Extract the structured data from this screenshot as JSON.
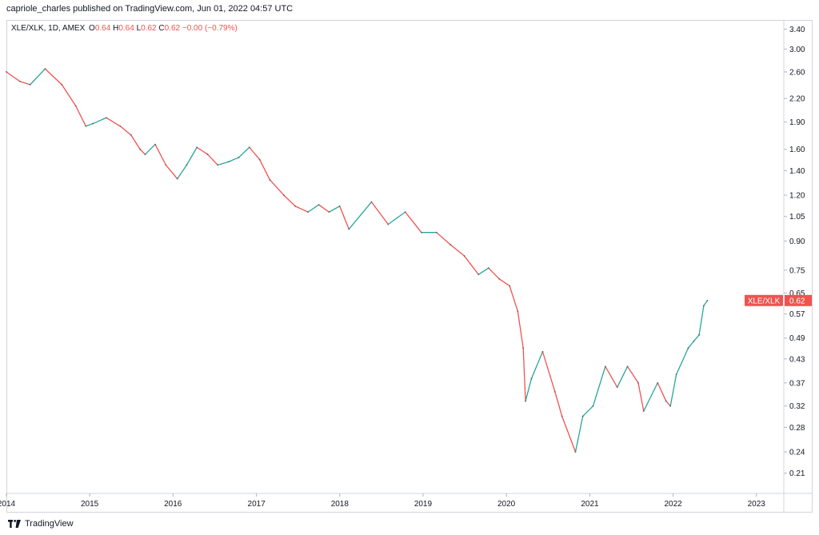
{
  "header": {
    "published_line": "capriole_charles published on TradingView.com, Jun 01, 2022 04:57 UTC"
  },
  "legend": {
    "symbol": "XLE/XLK, 1D, AMEX",
    "o_label": "O",
    "o_value": "0.64",
    "h_label": "H",
    "h_value": "0.64",
    "l_label": "L",
    "l_value": "0.62",
    "c_label": "C",
    "c_value": "0.62",
    "change": "−0.00 (−0.79%)"
  },
  "price_badge": {
    "label": "XLE/XLK",
    "value": "0.62"
  },
  "footer": {
    "brand": "TradingView",
    "logo_icon": "tradingview-logo-icon"
  },
  "colors": {
    "up": "#26a69a",
    "down": "#ef5350",
    "badge": "#ef5350",
    "axis_border": "#d1d4dc"
  },
  "chart_data": {
    "type": "line",
    "symbol": "XLE/XLK",
    "y_scale": "log",
    "ylim": [
      0.185,
      3.6
    ],
    "y_ticks": [
      "3.40",
      "3.00",
      "2.60",
      "2.20",
      "1.90",
      "1.60",
      "1.40",
      "1.20",
      "1.05",
      "0.90",
      "0.75",
      "0.65",
      "0.57",
      "0.49",
      "0.43",
      "0.37",
      "0.32",
      "0.28",
      "0.24",
      "0.21"
    ],
    "x_ticks": [
      "2014",
      "2015",
      "2016",
      "2017",
      "2018",
      "2019",
      "2020",
      "2021",
      "2022",
      "2023"
    ],
    "xlim": [
      "2014-01-01",
      "2023-05-01"
    ],
    "series": [
      {
        "values": [
          {
            "x": "2014-01-01",
            "y": 2.6
          },
          {
            "x": "2014-03-01",
            "y": 2.45
          },
          {
            "x": "2014-04-15",
            "y": 2.4
          },
          {
            "x": "2014-06-20",
            "y": 2.65
          },
          {
            "x": "2014-09-01",
            "y": 2.4
          },
          {
            "x": "2014-11-01",
            "y": 2.1
          },
          {
            "x": "2014-12-15",
            "y": 1.85
          },
          {
            "x": "2015-01-15",
            "y": 1.88
          },
          {
            "x": "2015-03-15",
            "y": 1.95
          },
          {
            "x": "2015-05-15",
            "y": 1.85
          },
          {
            "x": "2015-07-01",
            "y": 1.75
          },
          {
            "x": "2015-08-10",
            "y": 1.6
          },
          {
            "x": "2015-09-01",
            "y": 1.55
          },
          {
            "x": "2015-10-15",
            "y": 1.65
          },
          {
            "x": "2015-12-01",
            "y": 1.45
          },
          {
            "x": "2016-01-20",
            "y": 1.33
          },
          {
            "x": "2016-03-01",
            "y": 1.45
          },
          {
            "x": "2016-04-15",
            "y": 1.62
          },
          {
            "x": "2016-06-01",
            "y": 1.55
          },
          {
            "x": "2016-07-15",
            "y": 1.45
          },
          {
            "x": "2016-09-01",
            "y": 1.48
          },
          {
            "x": "2016-10-15",
            "y": 1.52
          },
          {
            "x": "2016-12-01",
            "y": 1.62
          },
          {
            "x": "2017-01-15",
            "y": 1.5
          },
          {
            "x": "2017-03-01",
            "y": 1.32
          },
          {
            "x": "2017-05-01",
            "y": 1.2
          },
          {
            "x": "2017-06-20",
            "y": 1.12
          },
          {
            "x": "2017-08-15",
            "y": 1.08
          },
          {
            "x": "2017-10-01",
            "y": 1.13
          },
          {
            "x": "2017-11-15",
            "y": 1.08
          },
          {
            "x": "2018-01-01",
            "y": 1.12
          },
          {
            "x": "2018-02-10",
            "y": 0.97
          },
          {
            "x": "2018-05-20",
            "y": 1.15
          },
          {
            "x": "2018-08-01",
            "y": 1.0
          },
          {
            "x": "2018-10-15",
            "y": 1.08
          },
          {
            "x": "2018-12-25",
            "y": 0.95
          },
          {
            "x": "2019-03-01",
            "y": 0.95
          },
          {
            "x": "2019-05-01",
            "y": 0.88
          },
          {
            "x": "2019-07-01",
            "y": 0.82
          },
          {
            "x": "2019-09-01",
            "y": 0.73
          },
          {
            "x": "2019-10-15",
            "y": 0.76
          },
          {
            "x": "2019-12-01",
            "y": 0.71
          },
          {
            "x": "2020-01-15",
            "y": 0.68
          },
          {
            "x": "2020-02-20",
            "y": 0.58
          },
          {
            "x": "2020-03-15",
            "y": 0.46
          },
          {
            "x": "2020-03-25",
            "y": 0.33
          },
          {
            "x": "2020-04-20",
            "y": 0.38
          },
          {
            "x": "2020-06-08",
            "y": 0.45
          },
          {
            "x": "2020-08-01",
            "y": 0.35
          },
          {
            "x": "2020-09-01",
            "y": 0.3
          },
          {
            "x": "2020-10-30",
            "y": 0.24
          },
          {
            "x": "2020-12-01",
            "y": 0.3
          },
          {
            "x": "2021-01-15",
            "y": 0.32
          },
          {
            "x": "2021-03-10",
            "y": 0.41
          },
          {
            "x": "2021-05-01",
            "y": 0.36
          },
          {
            "x": "2021-06-15",
            "y": 0.41
          },
          {
            "x": "2021-08-01",
            "y": 0.37
          },
          {
            "x": "2021-08-25",
            "y": 0.31
          },
          {
            "x": "2021-10-25",
            "y": 0.37
          },
          {
            "x": "2021-12-01",
            "y": 0.33
          },
          {
            "x": "2021-12-20",
            "y": 0.32
          },
          {
            "x": "2022-01-15",
            "y": 0.39
          },
          {
            "x": "2022-03-08",
            "y": 0.46
          },
          {
            "x": "2022-04-01",
            "y": 0.48
          },
          {
            "x": "2022-04-25",
            "y": 0.5
          },
          {
            "x": "2022-05-15",
            "y": 0.6
          },
          {
            "x": "2022-05-31",
            "y": 0.62
          }
        ]
      }
    ]
  }
}
